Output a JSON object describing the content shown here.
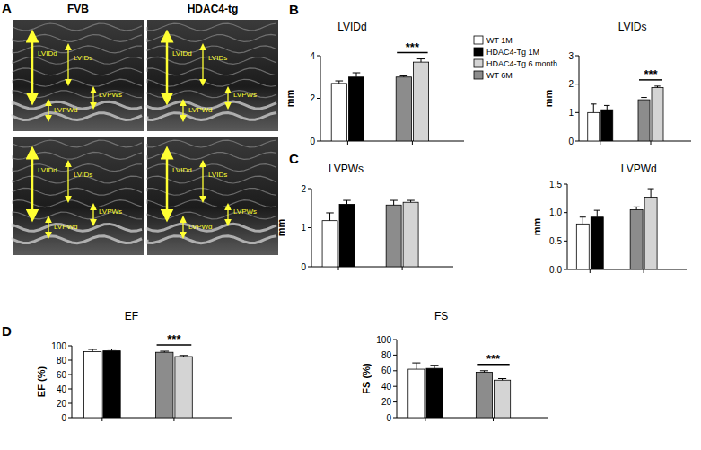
{
  "figure": {
    "panel_labels": [
      "A",
      "B",
      "C",
      "D"
    ],
    "image_panel": {
      "columns": [
        "FVB",
        "HDAC4-tg"
      ],
      "annotations": [
        "LVIDd",
        "LVIDs",
        "LVPWs",
        "LVPWd"
      ]
    }
  },
  "chart_data": [
    {
      "type": "bar",
      "title": "LVIDd",
      "y_label": "mm",
      "categories": [
        null,
        null
      ],
      "ylim": [
        0,
        4
      ],
      "yticks": [
        0,
        2,
        4
      ],
      "legend": "right",
      "series": [
        {
          "name": "WT 1M",
          "color": "#ffffff",
          "values": [
            2.7,
            null
          ],
          "errors": [
            0.12,
            null
          ]
        },
        {
          "name": "HDAC4-Tg 1M",
          "color": "#000000",
          "values": [
            3.0,
            null
          ],
          "errors": [
            0.2,
            null
          ]
        },
        {
          "name": "WT 6M",
          "color": "#8c8c8c",
          "values": [
            null,
            3.0
          ],
          "errors": [
            null,
            0.05
          ]
        },
        {
          "name": "HDAC4-Tg 6 month",
          "color": "#d4d4d4",
          "values": [
            null,
            3.7
          ],
          "errors": [
            null,
            0.15
          ]
        }
      ],
      "annotations": [
        {
          "text": "***",
          "category": 1
        }
      ]
    },
    {
      "type": "bar",
      "title": "LVIDs",
      "y_label": "mm",
      "categories": [
        null,
        null
      ],
      "ylim": [
        0,
        3
      ],
      "yticks": [
        0,
        1,
        2,
        3
      ],
      "series": [
        {
          "color": "#ffffff",
          "values": [
            1.0,
            null
          ],
          "errors": [
            0.3,
            null
          ]
        },
        {
          "color": "#000000",
          "values": [
            1.1,
            null
          ],
          "errors": [
            0.15,
            null
          ]
        },
        {
          "color": "#8c8c8c",
          "values": [
            null,
            1.45
          ],
          "errors": [
            null,
            0.08
          ]
        },
        {
          "color": "#d4d4d4",
          "values": [
            null,
            1.88
          ],
          "errors": [
            null,
            0.05
          ]
        }
      ],
      "annotations": [
        {
          "text": "***",
          "category": 1
        }
      ]
    },
    {
      "type": "bar",
      "title": "LVPWs",
      "y_label": "mm",
      "categories": [
        null,
        null
      ],
      "ylim": [
        0,
        2
      ],
      "yticks": [
        0,
        1,
        2
      ],
      "series": [
        {
          "color": "#ffffff",
          "values": [
            1.18,
            null
          ],
          "errors": [
            0.2,
            null
          ]
        },
        {
          "color": "#000000",
          "values": [
            1.6,
            null
          ],
          "errors": [
            0.1,
            null
          ]
        },
        {
          "color": "#8c8c8c",
          "values": [
            null,
            1.58
          ],
          "errors": [
            null,
            0.12
          ]
        },
        {
          "color": "#d4d4d4",
          "values": [
            null,
            1.65
          ],
          "errors": [
            null,
            0.05
          ]
        }
      ]
    },
    {
      "type": "bar",
      "title": "LVPWd",
      "y_label": "mm",
      "categories": [
        null,
        null
      ],
      "ylim": [
        0,
        1.5
      ],
      "yticks": [
        {
          "value": 0,
          "label": "0.0"
        },
        {
          "value": 0.5,
          "label": "0.5"
        },
        {
          "value": 1,
          "label": "1.0"
        },
        {
          "value": 1.5,
          "label": "1.5"
        }
      ],
      "series": [
        {
          "color": "#ffffff",
          "values": [
            0.8,
            null
          ],
          "errors": [
            0.12,
            null
          ]
        },
        {
          "color": "#000000",
          "values": [
            0.92,
            null
          ],
          "errors": [
            0.12,
            null
          ]
        },
        {
          "color": "#8c8c8c",
          "values": [
            null,
            1.05
          ],
          "errors": [
            null,
            0.05
          ]
        },
        {
          "color": "#d4d4d4",
          "values": [
            null,
            1.27
          ],
          "errors": [
            null,
            0.15
          ]
        }
      ]
    },
    {
      "type": "bar",
      "title": "EF",
      "y_label": "EF (%)",
      "categories": [
        null,
        null
      ],
      "ylim": [
        0,
        100
      ],
      "yticks": [
        0,
        20,
        40,
        60,
        80,
        100
      ],
      "series": [
        {
          "color": "#ffffff",
          "values": [
            92,
            null
          ],
          "errors": [
            3,
            null
          ]
        },
        {
          "color": "#000000",
          "values": [
            93,
            null
          ],
          "errors": [
            2.5,
            null
          ]
        },
        {
          "color": "#8c8c8c",
          "values": [
            null,
            91
          ],
          "errors": [
            null,
            1.5
          ]
        },
        {
          "color": "#d4d4d4",
          "values": [
            null,
            85
          ],
          "errors": [
            null,
            1.5
          ]
        }
      ],
      "annotations": [
        {
          "text": "***",
          "category": 1
        }
      ]
    },
    {
      "type": "bar",
      "title": "FS",
      "y_label": "FS (%)",
      "categories": [
        null,
        null
      ],
      "ylim": [
        0,
        100
      ],
      "yticks": [
        0,
        20,
        40,
        60,
        80,
        100
      ],
      "series": [
        {
          "color": "#ffffff",
          "values": [
            62,
            null
          ],
          "errors": [
            8,
            null
          ]
        },
        {
          "color": "#000000",
          "values": [
            63,
            null
          ],
          "errors": [
            4,
            null
          ]
        },
        {
          "color": "#8c8c8c",
          "values": [
            null,
            58
          ],
          "errors": [
            null,
            2
          ]
        },
        {
          "color": "#d4d4d4",
          "values": [
            null,
            48
          ],
          "errors": [
            null,
            2
          ]
        }
      ],
      "annotations": [
        {
          "text": "***",
          "category": 1
        }
      ]
    }
  ]
}
